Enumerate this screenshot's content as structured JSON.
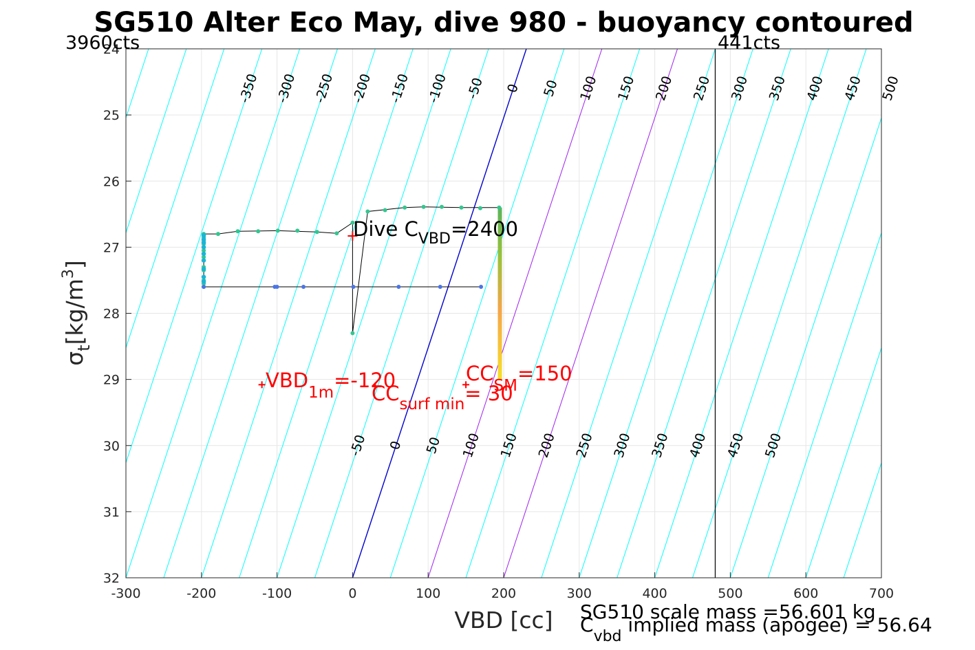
{
  "chart_data": {
    "type": "scatter",
    "title": "SG510 Alter Eco May, dive 980 - buoyancy contoured",
    "xlabel": "VBD [cc]",
    "ylabel": "σ_t [kg/m³]",
    "ylabel_sym": "σ",
    "ylabel_sub": "t",
    "ylabel_units": "[kg/m",
    "ylabel_sup": "3",
    "ylabel_close": "]",
    "xlim": [
      -300,
      700
    ],
    "ylim": [
      24,
      32
    ],
    "y_reversed": true,
    "grid": true,
    "xticks": [
      -300,
      -200,
      -100,
      0,
      100,
      200,
      300,
      400,
      500,
      600,
      700
    ],
    "yticks": [
      24,
      25,
      26,
      27,
      28,
      29,
      30,
      31,
      32
    ],
    "counts_left": "3960cts",
    "counts_right": "441cts",
    "counts_right_x": 480,
    "contours": {
      "levels": [
        -350,
        -300,
        -250,
        -200,
        -150,
        -100,
        -50,
        0,
        50,
        100,
        150,
        200,
        250,
        300,
        350,
        400,
        450,
        500
      ],
      "top_labels": [
        "-350",
        "-300",
        "-250",
        "-200",
        "-150",
        "-100",
        "-50",
        "0",
        "50",
        "100",
        "150",
        "200",
        "250",
        "300",
        "350",
        "400",
        "450",
        "500"
      ],
      "bottom_labels": [
        "-50",
        "0",
        "50",
        "100",
        "150",
        "200",
        "250",
        "300",
        "350",
        "400",
        "450",
        "500"
      ],
      "zero_color": "#0000cd",
      "magenta_levels": [
        100,
        200
      ],
      "magenta_color": "#a020f0",
      "other_color": "#00ffff"
    },
    "series": [
      {
        "points": [
          [
            -197,
            26.8
          ],
          [
            -197,
            26.85
          ],
          [
            -197,
            26.9
          ],
          [
            -197,
            26.95
          ],
          [
            -197,
            27.05
          ],
          [
            -197,
            27.15
          ],
          [
            -197,
            27.3
          ],
          [
            -197,
            27.35
          ],
          [
            -197,
            27.5
          ],
          [
            -197,
            27.55
          ],
          [
            -197,
            27.6
          ],
          [
            -178,
            26.8
          ],
          [
            -152,
            26.76
          ],
          [
            -125,
            26.76
          ],
          [
            -99,
            26.75
          ],
          [
            -73,
            26.75
          ],
          [
            -47,
            26.77
          ],
          [
            -21,
            26.79
          ],
          [
            0,
            26.63
          ],
          [
            0,
            28.3
          ],
          [
            20,
            26.46
          ],
          [
            43,
            26.44
          ],
          [
            69,
            26.4
          ],
          [
            94,
            26.39
          ],
          [
            118,
            26.39
          ],
          [
            144,
            26.4
          ],
          [
            169,
            26.41
          ],
          [
            194,
            26.4
          ]
        ],
        "color": "#33c690"
      },
      {
        "points": [
          [
            170,
            27.6
          ],
          [
            116,
            27.6
          ],
          [
            61,
            27.6
          ],
          [
            1,
            27.6
          ],
          [
            -65,
            27.6
          ],
          [
            -100,
            27.6
          ],
          [
            -103,
            27.6
          ],
          [
            -197,
            27.6
          ]
        ],
        "color": "#4a74e8"
      }
    ],
    "vertical_bar": {
      "x": 195,
      "y_from": 26.4,
      "y_to": 29.0,
      "colors": [
        "#5ab55a",
        "#9cc23a",
        "#f5a64a",
        "#f6e028"
      ]
    },
    "annotations": {
      "dive_cvbd_pre": "Dive C",
      "dive_cvbd_sub": "VBD",
      "dive_cvbd_post": "=2400",
      "dive_cvbd_marker": [
        0,
        26.83
      ],
      "vbd1m_pre": "VBD",
      "vbd1m_sub": "1m",
      "vbd1m_post": "=-120",
      "vbd1m_marker": [
        -120,
        29.08
      ],
      "ccsm_pre": "CC",
      "ccsm_sub": "SM",
      "ccsm_post": "=150",
      "ccsm_marker": [
        150,
        29.08
      ],
      "ccsurf_pre": "CC",
      "ccsurf_sub": "surf min",
      "ccsurf_post": "= 30",
      "ccsurf_marker": [
        30,
        29.1
      ]
    },
    "mass_line1": "SG510 scale mass =56.601 kg",
    "mass_line2_pre": "C",
    "mass_line2_sub": "vbd",
    "mass_line2_post": " implied mass (apogee) = 56.64"
  }
}
